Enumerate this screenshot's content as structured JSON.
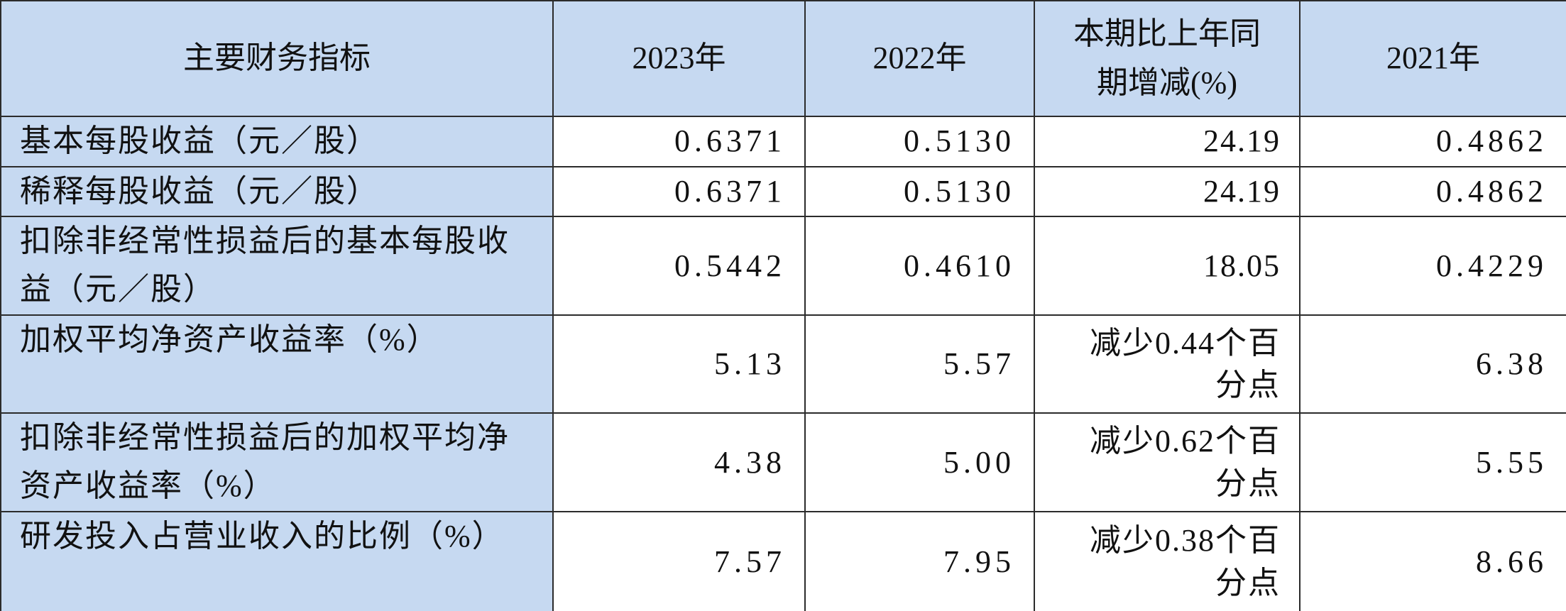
{
  "table": {
    "header": [
      "主要财务指标",
      "2023年",
      "2022年",
      "本期比上年同期增减(%)",
      "2021年"
    ],
    "rows": [
      [
        "基本每股收益（元／股）",
        "0.6371",
        "0.5130",
        "24.19",
        "0.4862"
      ],
      [
        "稀释每股收益（元／股）",
        "0.6371",
        "0.5130",
        "24.19",
        "0.4862"
      ],
      [
        "扣除非经常性损益后的基本每股收益（元／股）",
        "0.5442",
        "0.4610",
        "18.05",
        "0.4229"
      ],
      [
        "加权平均净资产收益率（%）",
        "5.13",
        "5.57",
        "减少0.44个百分点",
        "6.38"
      ],
      [
        "扣除非经常性损益后的加权平均净资产收益率（%）",
        "4.38",
        "5.00",
        "减少0.62个百分点",
        "5.55"
      ],
      [
        "研发投入占营业收入的比例（%）",
        "7.57",
        "7.95",
        "减少0.38个百分点",
        "8.66"
      ]
    ]
  }
}
